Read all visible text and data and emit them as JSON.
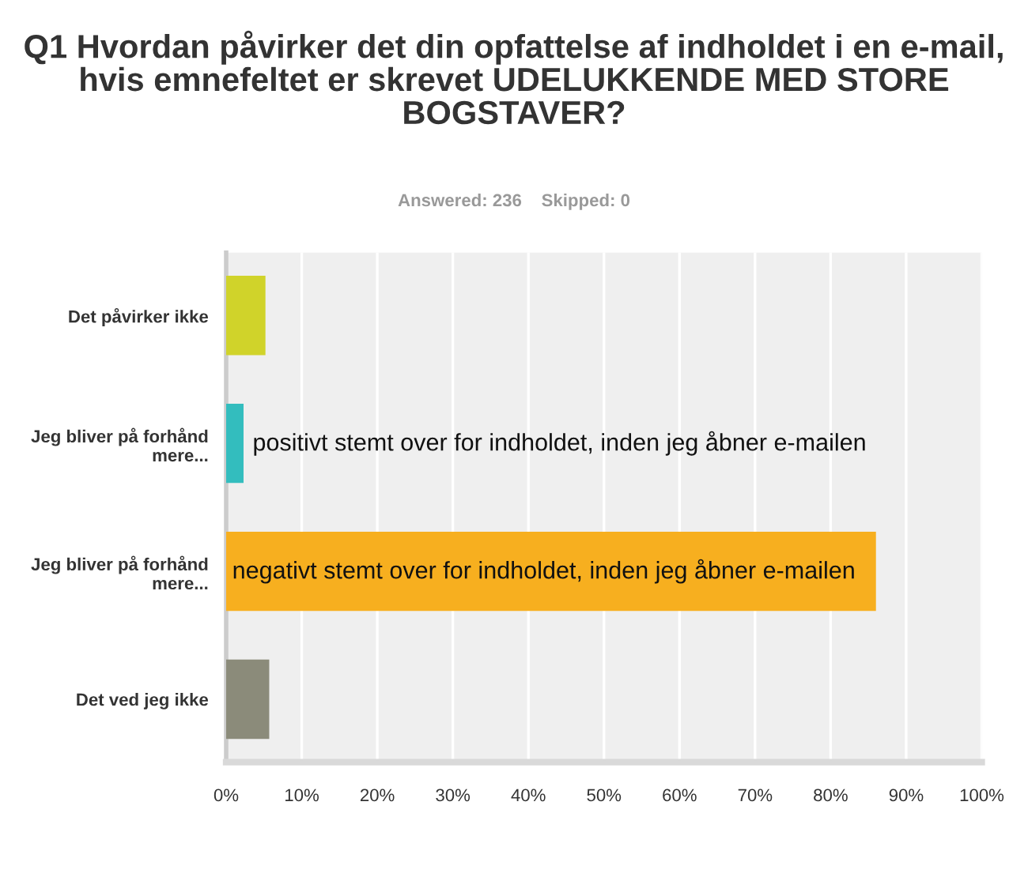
{
  "chart_data": {
    "type": "bar",
    "orientation": "horizontal",
    "title": "Q1 Hvordan påvirker det din opfattelse af indholdet i en e-mail, hvis emnefeltet er skrevet UDELUKKENDE MED STORE BOGSTAVER?",
    "subtitle": "Answered: 236    Skipped: 0",
    "categories": [
      "Det påvirker ikke",
      "Jeg bliver på forhånd mere...",
      "Jeg bliver på forhånd mere...",
      "Det ved jeg ikke"
    ],
    "values": [
      5.2,
      2.3,
      86,
      5.7
    ],
    "colors": [
      "#d0d32a",
      "#33bdbe",
      "#f7af1f",
      "#8b8b7a"
    ],
    "value_labels": [
      null,
      "positivt stemt over for indholdet, inden jeg åbner e-mailen",
      "negativt stemt over for indholdet, inden jeg åbner e-mailen",
      null
    ],
    "xlim": [
      0,
      100
    ],
    "xticks": [
      {
        "value": 0,
        "label": "0%"
      },
      {
        "value": 10,
        "label": "10%"
      },
      {
        "value": 20,
        "label": "20%"
      },
      {
        "value": 30,
        "label": "30%"
      },
      {
        "value": 40,
        "label": "40%"
      },
      {
        "value": 50,
        "label": "50%"
      },
      {
        "value": 60,
        "label": "60%"
      },
      {
        "value": 70,
        "label": "70%"
      },
      {
        "value": 80,
        "label": "80%"
      },
      {
        "value": 90,
        "label": "90%"
      },
      {
        "value": 100,
        "label": "100%"
      }
    ],
    "grid": "x",
    "legend": false
  }
}
